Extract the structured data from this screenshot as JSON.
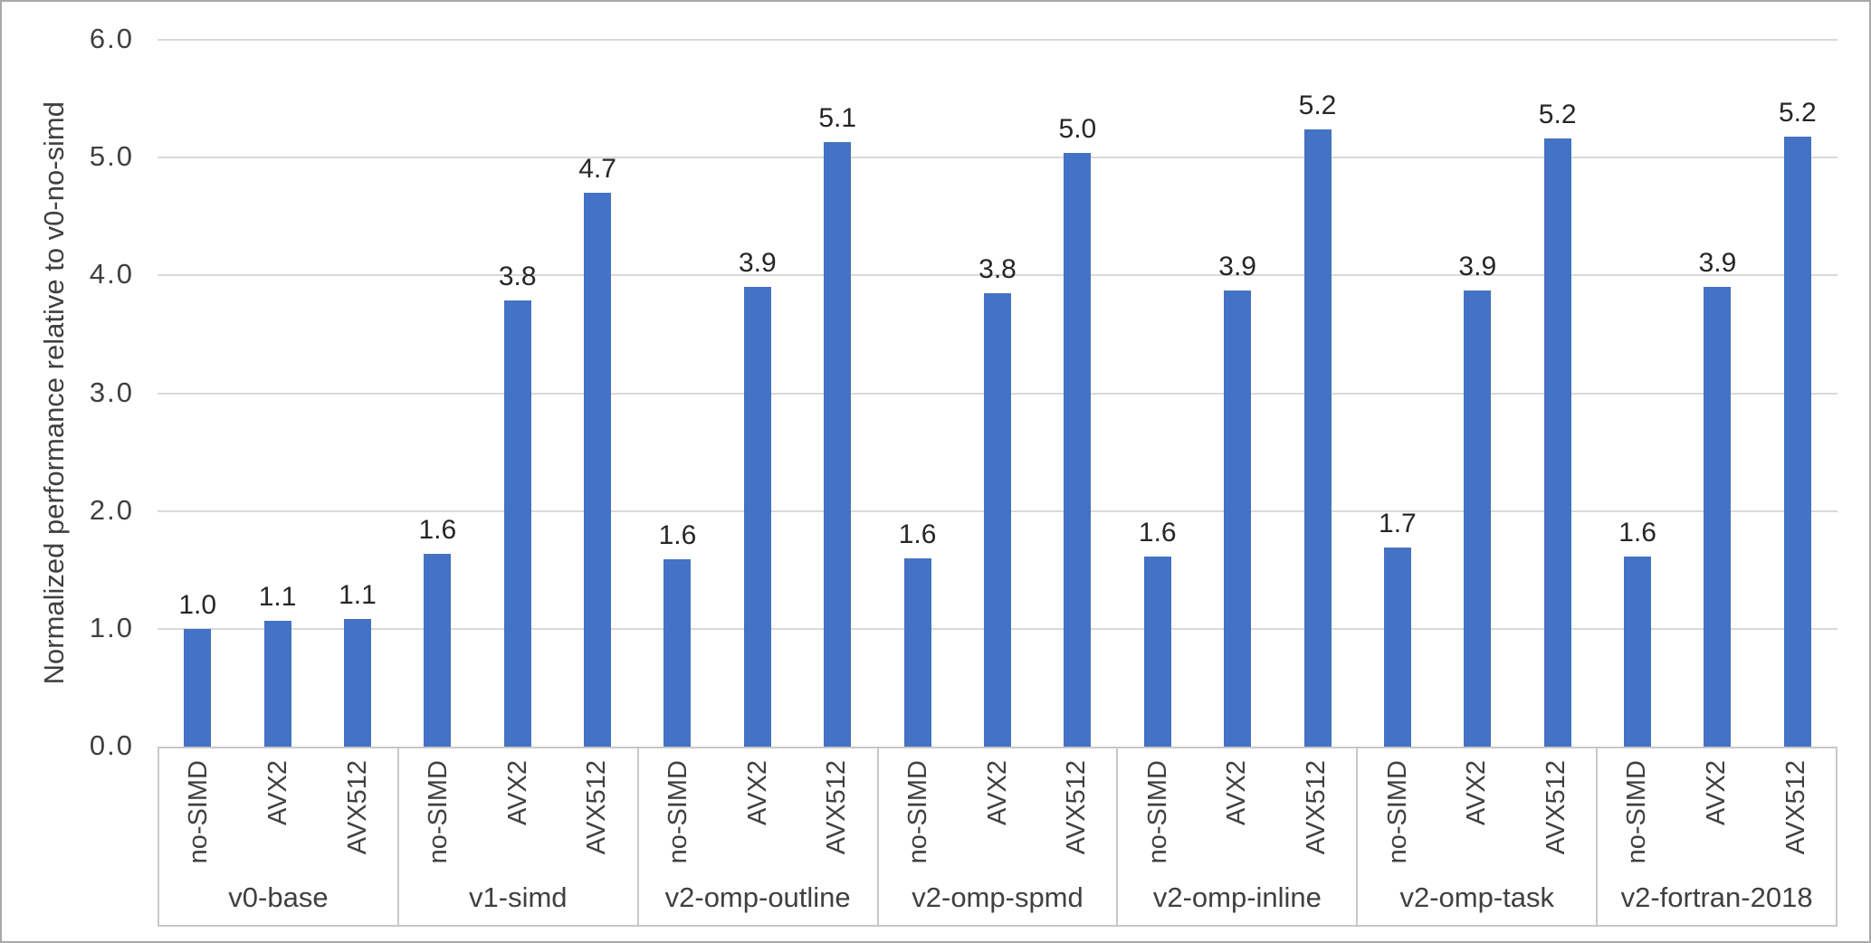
{
  "chart_data": {
    "type": "bar",
    "ylabel": "Normalized performance relative to v0-no-simd",
    "ylim": [
      0,
      6
    ],
    "yticks": [
      "0.0",
      "1.0",
      "2.0",
      "3.0",
      "4.0",
      "5.0",
      "6.0"
    ],
    "grid": "horizontal",
    "legend": "none",
    "bar_color": "#4472C4",
    "gridline_color": "#D9D9D9",
    "axis_text_color": "#404040",
    "data_label_color": "#262626",
    "categories_per_group": [
      "no-SIMD",
      "AVX2",
      "AVX512"
    ],
    "groups": [
      {
        "label": "v0-base",
        "categories": [
          "no-SIMD",
          "AVX2",
          "AVX512"
        ],
        "values": [
          1.0,
          1.07,
          1.08
        ],
        "labels": [
          "1.0",
          "1.1",
          "1.1"
        ]
      },
      {
        "label": "v1-simd",
        "categories": [
          "no-SIMD",
          "AVX2",
          "AVX512"
        ],
        "values": [
          1.64,
          3.79,
          4.7
        ],
        "labels": [
          "1.6",
          "3.8",
          "4.7"
        ]
      },
      {
        "label": "v2-omp-outline",
        "categories": [
          "no-SIMD",
          "AVX2",
          "AVX512"
        ],
        "values": [
          1.59,
          3.9,
          5.13
        ],
        "labels": [
          "1.6",
          "3.9",
          "5.1"
        ]
      },
      {
        "label": "v2-omp-spmd",
        "categories": [
          "no-SIMD",
          "AVX2",
          "AVX512"
        ],
        "values": [
          1.6,
          3.85,
          5.04
        ],
        "labels": [
          "1.6",
          "3.8",
          "5.0"
        ]
      },
      {
        "label": "v2-omp-inline",
        "categories": [
          "no-SIMD",
          "AVX2",
          "AVX512"
        ],
        "values": [
          1.61,
          3.87,
          5.24
        ],
        "labels": [
          "1.6",
          "3.9",
          "5.2"
        ]
      },
      {
        "label": "v2-omp-task",
        "categories": [
          "no-SIMD",
          "AVX2",
          "AVX512"
        ],
        "values": [
          1.69,
          3.87,
          5.16
        ],
        "labels": [
          "1.7",
          "3.9",
          "5.2"
        ]
      },
      {
        "label": "v2-fortran-2018",
        "categories": [
          "no-SIMD",
          "AVX2",
          "AVX512"
        ],
        "values": [
          1.61,
          3.9,
          5.18
        ],
        "labels": [
          "1.6",
          "3.9",
          "5.2"
        ]
      }
    ]
  }
}
